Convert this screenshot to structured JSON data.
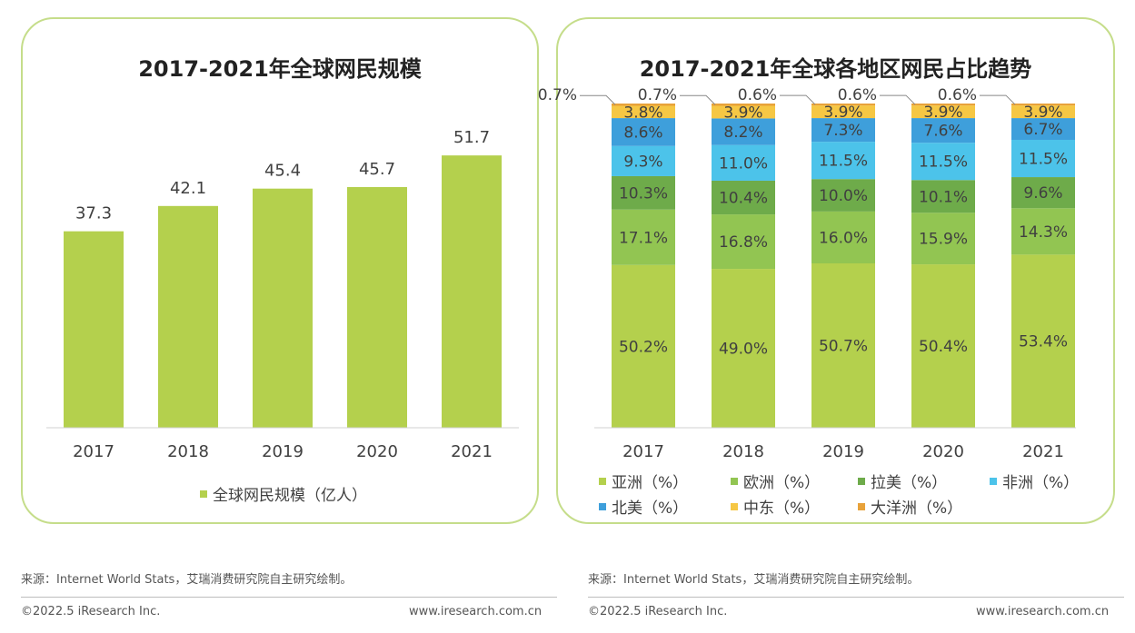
{
  "panels": {
    "left": {
      "title": "2017-2021年全球网民规模"
    },
    "right": {
      "title": "2017-2021年全球各地区网民占比趋势"
    }
  },
  "chart_data": [
    {
      "type": "bar",
      "title": "2017-2021年全球网民规模",
      "categories": [
        "2017",
        "2018",
        "2019",
        "2020",
        "2021"
      ],
      "series": [
        {
          "name": "全球网民规模（亿人）",
          "values": [
            37.3,
            42.1,
            45.4,
            45.7,
            51.7
          ],
          "color": "#b4d04d"
        }
      ],
      "ylim": [
        0,
        60
      ],
      "grid": false,
      "legend": "bottom"
    },
    {
      "type": "bar",
      "stacked": true,
      "title": "2017-2021年全球各地区网民占比趋势",
      "categories": [
        "2017",
        "2018",
        "2019",
        "2020",
        "2021"
      ],
      "series": [
        {
          "name": "亚洲（%）",
          "values": [
            50.2,
            49.0,
            50.7,
            50.4,
            53.4
          ],
          "labels": [
            "50.2%",
            "49.0%",
            "50.7%",
            "50.4%",
            "53.4%"
          ],
          "color": "#b4d04d"
        },
        {
          "name": "欧洲（%）",
          "values": [
            17.1,
            16.8,
            16.0,
            15.9,
            14.3
          ],
          "labels": [
            "17.1%",
            "16.8%",
            "16.0%",
            "15.9%",
            "14.3%"
          ],
          "color": "#92c552"
        },
        {
          "name": "拉美（%）",
          "values": [
            10.3,
            10.4,
            10.0,
            10.1,
            9.6
          ],
          "labels": [
            "10.3%",
            "10.4%",
            "10.0%",
            "10.1%",
            "9.6%"
          ],
          "color": "#6eab4a"
        },
        {
          "name": "非洲（%）",
          "values": [
            9.3,
            11.0,
            11.5,
            11.5,
            11.5
          ],
          "labels": [
            "9.3%",
            "11.0%",
            "11.5%",
            "11.5%",
            "11.5%"
          ],
          "color": "#4cc3ea"
        },
        {
          "name": "北美（%）",
          "values": [
            8.6,
            8.2,
            7.3,
            7.6,
            6.7
          ],
          "labels": [
            "8.6%",
            "8.2%",
            "7.3%",
            "7.6%",
            "6.7%"
          ],
          "color": "#3e9fdb"
        },
        {
          "name": "中东（%）",
          "values": [
            3.8,
            3.9,
            3.9,
            3.9,
            3.9
          ],
          "labels": [
            "3.8%",
            "3.9%",
            "3.9%",
            "3.9%",
            "3.9%"
          ],
          "color": "#f6c744"
        },
        {
          "name": "大洋洲（%）",
          "values": [
            0.7,
            0.7,
            0.6,
            0.6,
            0.6
          ],
          "labels": [
            "0.7%",
            "0.7%",
            "0.6%",
            "0.6%",
            "0.6%"
          ],
          "color": "#e8a23a"
        }
      ],
      "ylim": [
        0,
        100
      ],
      "grid": false,
      "legend": "bottom"
    }
  ],
  "footer": {
    "source": "来源：Internet World Stats，艾瑞消费研究院自主研究绘制。",
    "copyright": "©2022.5 iResearch Inc.",
    "url": "www.iresearch.com.cn"
  }
}
